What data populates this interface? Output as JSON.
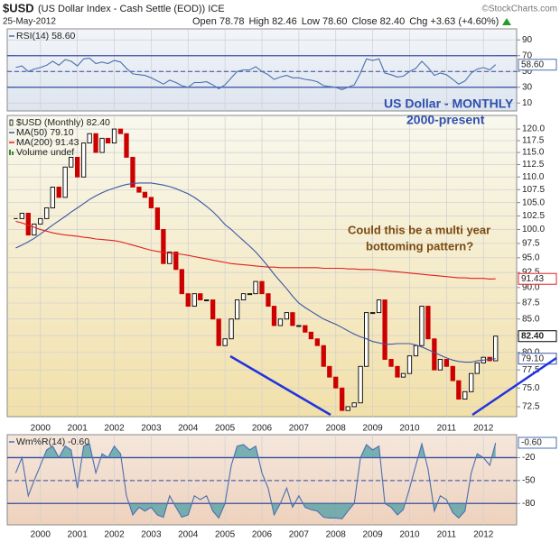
{
  "header": {
    "symbol": "$USD",
    "name": "(US Dollar Index - Cash Settle (EOD)) ICE",
    "credit": "©StockCharts.com",
    "date": "25-May-2012",
    "open": "Open 78.78",
    "high": "High 82.46",
    "low": "Low 78.60",
    "close": "Close 82.40",
    "change": "Chg +3.63 (+4.60%)"
  },
  "chart_data": [
    {
      "type": "line",
      "ylim": [
        0,
        104
      ],
      "yticks": [
        10,
        30,
        50,
        70,
        90
      ],
      "bands": [
        30,
        70
      ],
      "midline": 50,
      "band_color": "#8fa7d4",
      "series": [
        {
          "name": "RSI(14) 58.60",
          "color": "#4a6fb0",
          "last_label": "58.60",
          "values": [
            55,
            57,
            50,
            53,
            55,
            58,
            63,
            58,
            65,
            63,
            57,
            66,
            67,
            60,
            62,
            60,
            64,
            62,
            54,
            47,
            46,
            45,
            42,
            38,
            34,
            39,
            36,
            32,
            30,
            36,
            36,
            37,
            33,
            28,
            33,
            42,
            50,
            52,
            52,
            56,
            50,
            46,
            40,
            43,
            45,
            42,
            42,
            40,
            39,
            37,
            32,
            31,
            30,
            27,
            30,
            33,
            48,
            66,
            64,
            66,
            48,
            46,
            43,
            44,
            50,
            54,
            63,
            55,
            45,
            48,
            46,
            40,
            34,
            38,
            48,
            53,
            55,
            52,
            58.6
          ]
        }
      ]
    },
    {
      "type": "candlestick",
      "log_scale": true,
      "grid": true,
      "xlim": [
        1999.1,
        2012.9
      ],
      "ylim": [
        71.2,
        123
      ],
      "xticks": [
        2000,
        2001,
        2002,
        2003,
        2004,
        2005,
        2006,
        2007,
        2008,
        2009,
        2010,
        2011,
        2012
      ],
      "yticks": [
        72.5,
        {
          "value": 75,
          "label": "75.0"
        },
        77.5,
        {
          "value": 80,
          "label": "80.0"
        },
        82.5,
        {
          "value": 85,
          "label": "85.0"
        },
        87.5,
        {
          "value": 90,
          "label": "90.0"
        },
        92.5,
        {
          "value": 95,
          "label": "95.0"
        },
        97.5,
        {
          "value": 100,
          "label": "100.0"
        },
        102.5,
        {
          "value": 105,
          "label": "105.0"
        },
        107.5,
        {
          "value": 110,
          "label": "110.0"
        },
        112.5,
        {
          "value": 115,
          "label": "115.0"
        },
        117.5,
        {
          "value": 120,
          "label": "120.0"
        }
      ],
      "annotations": [
        "US Dollar - MONTHLY",
        "2000-present",
        "Could this be a multi year",
        "bottoming pattern?"
      ],
      "volume_label": "Volume undef",
      "x": [
        1999.33,
        1999.5,
        1999.67,
        1999.83,
        2000,
        2000.17,
        2000.33,
        2000.5,
        2000.67,
        2000.83,
        2001,
        2001.17,
        2001.33,
        2001.5,
        2001.67,
        2001.83,
        2002,
        2002.17,
        2002.33,
        2002.5,
        2002.67,
        2002.83,
        2003,
        2003.17,
        2003.33,
        2003.5,
        2003.67,
        2003.83,
        2004,
        2004.17,
        2004.33,
        2004.5,
        2004.67,
        2004.83,
        2005,
        2005.17,
        2005.33,
        2005.5,
        2005.67,
        2005.83,
        2006,
        2006.17,
        2006.33,
        2006.5,
        2006.67,
        2006.83,
        2007,
        2007.17,
        2007.33,
        2007.5,
        2007.67,
        2007.83,
        2008,
        2008.17,
        2008.33,
        2008.5,
        2008.67,
        2008.83,
        2009,
        2009.17,
        2009.33,
        2009.5,
        2009.67,
        2009.83,
        2010,
        2010.17,
        2010.33,
        2010.5,
        2010.67,
        2010.83,
        2011,
        2011.17,
        2011.33,
        2011.5,
        2011.67,
        2011.83,
        2012,
        2012.17,
        2012.33
      ],
      "series": [
        {
          "name": "$USD (Monthly) 82.40",
          "color": "#000000",
          "down_color": "#cc0000",
          "last_label": "82.40",
          "values": [
            102,
            103,
            99,
            101,
            102,
            104,
            108,
            106,
            112,
            114,
            110,
            117,
            119,
            115,
            118,
            117,
            120,
            119,
            114,
            108,
            107,
            106,
            104,
            100,
            94,
            96,
            93,
            89,
            87,
            89,
            88,
            88,
            85,
            81,
            82,
            85,
            88,
            89,
            89,
            91,
            89,
            87,
            84,
            85,
            86,
            84,
            84,
            83,
            82,
            81,
            78,
            76.5,
            75,
            72,
            72.5,
            73,
            78,
            86,
            86,
            88,
            79,
            78,
            76.5,
            77,
            79.5,
            81,
            87,
            82,
            77.5,
            79,
            78,
            76,
            73.5,
            74.5,
            77,
            78.5,
            79.3,
            78.8,
            82.4
          ]
        },
        {
          "name": "MA(50) 79.10",
          "color": "#3c55a5",
          "last_label": "79.10",
          "values": [
            96.7,
            97.2,
            97.8,
            98.4,
            99.2,
            100,
            100.8,
            101.6,
            102.4,
            103.2,
            104,
            104.8,
            105.6,
            106.3,
            106.9,
            107.4,
            107.8,
            108.2,
            108.5,
            108.7,
            108.8,
            108.8,
            108.8,
            108.6,
            108.4,
            108.1,
            107.7,
            107.2,
            106.7,
            106,
            105.2,
            104.3,
            103.3,
            102.2,
            100.9,
            100,
            99,
            98,
            97,
            96,
            94.8,
            93.5,
            92.2,
            91,
            89.8,
            88.6,
            87.5,
            86.8,
            86.2,
            85.6,
            85,
            84.6,
            84.2,
            83.7,
            83.2,
            82.7,
            82.3,
            82,
            81.6,
            81.4,
            81.2,
            81.2,
            81.3,
            81.3,
            81.3,
            81.1,
            80.8,
            80.4,
            80,
            79.6,
            79.2,
            78.9,
            78.7,
            78.6,
            78.6,
            78.8,
            78.9,
            79,
            79.1
          ]
        },
        {
          "name": "MA(200) 91.43",
          "color": "#e02020",
          "last_label": "91.43",
          "values": [
            101.5,
            101.2,
            100.8,
            100.4,
            100,
            99.7,
            99.4,
            99.2,
            99,
            98.9,
            98.8,
            98.6,
            98.5,
            98.3,
            98.2,
            98.1,
            98,
            97.8,
            97.5,
            97.2,
            96.9,
            96.6,
            96.3,
            96.1,
            95.9,
            95.8,
            95.7,
            95.6,
            95.4,
            95.2,
            95,
            94.8,
            94.6,
            94.4,
            94.2,
            94,
            93.9,
            93.8,
            93.7,
            93.6,
            93.5,
            93.4,
            93.4,
            93.3,
            93.3,
            93.3,
            93.3,
            93.3,
            93.3,
            93.3,
            93.2,
            93.2,
            93.2,
            93.2,
            93.1,
            93.1,
            93,
            93,
            93,
            92.9,
            92.8,
            92.7,
            92.6,
            92.5,
            92.4,
            92.3,
            92.2,
            92.1,
            92,
            91.9,
            91.8,
            91.7,
            91.6,
            91.6,
            91.5,
            91.5,
            91.5,
            91.4,
            91.43
          ]
        }
      ]
    },
    {
      "type": "line",
      "ylim": [
        -108,
        10
      ],
      "yticks": [
        -20,
        -50,
        -80
      ],
      "bands": [
        -80,
        -20
      ],
      "midline": -50,
      "band_color": "#4f9ea6",
      "series": [
        {
          "name": "Wm%R(14) -0.60",
          "color": "#4a6fb0",
          "last_label": "-0.60",
          "values": [
            -40,
            -20,
            -70,
            -50,
            -30,
            -10,
            -5,
            -20,
            -5,
            -10,
            -60,
            -5,
            -2,
            -40,
            -15,
            -20,
            -5,
            -15,
            -70,
            -95,
            -85,
            -90,
            -85,
            -95,
            -98,
            -70,
            -85,
            -98,
            -95,
            -70,
            -75,
            -70,
            -90,
            -99,
            -80,
            -30,
            -5,
            -3,
            -10,
            -5,
            -40,
            -60,
            -95,
            -80,
            -60,
            -85,
            -70,
            -85,
            -88,
            -90,
            -98,
            -99,
            -99,
            -100,
            -90,
            -80,
            -20,
            -3,
            -10,
            -5,
            -80,
            -85,
            -95,
            -88,
            -60,
            -30,
            -2,
            -35,
            -90,
            -70,
            -75,
            -92,
            -99,
            -90,
            -40,
            -15,
            -20,
            -30,
            -0.6
          ]
        }
      ]
    }
  ]
}
